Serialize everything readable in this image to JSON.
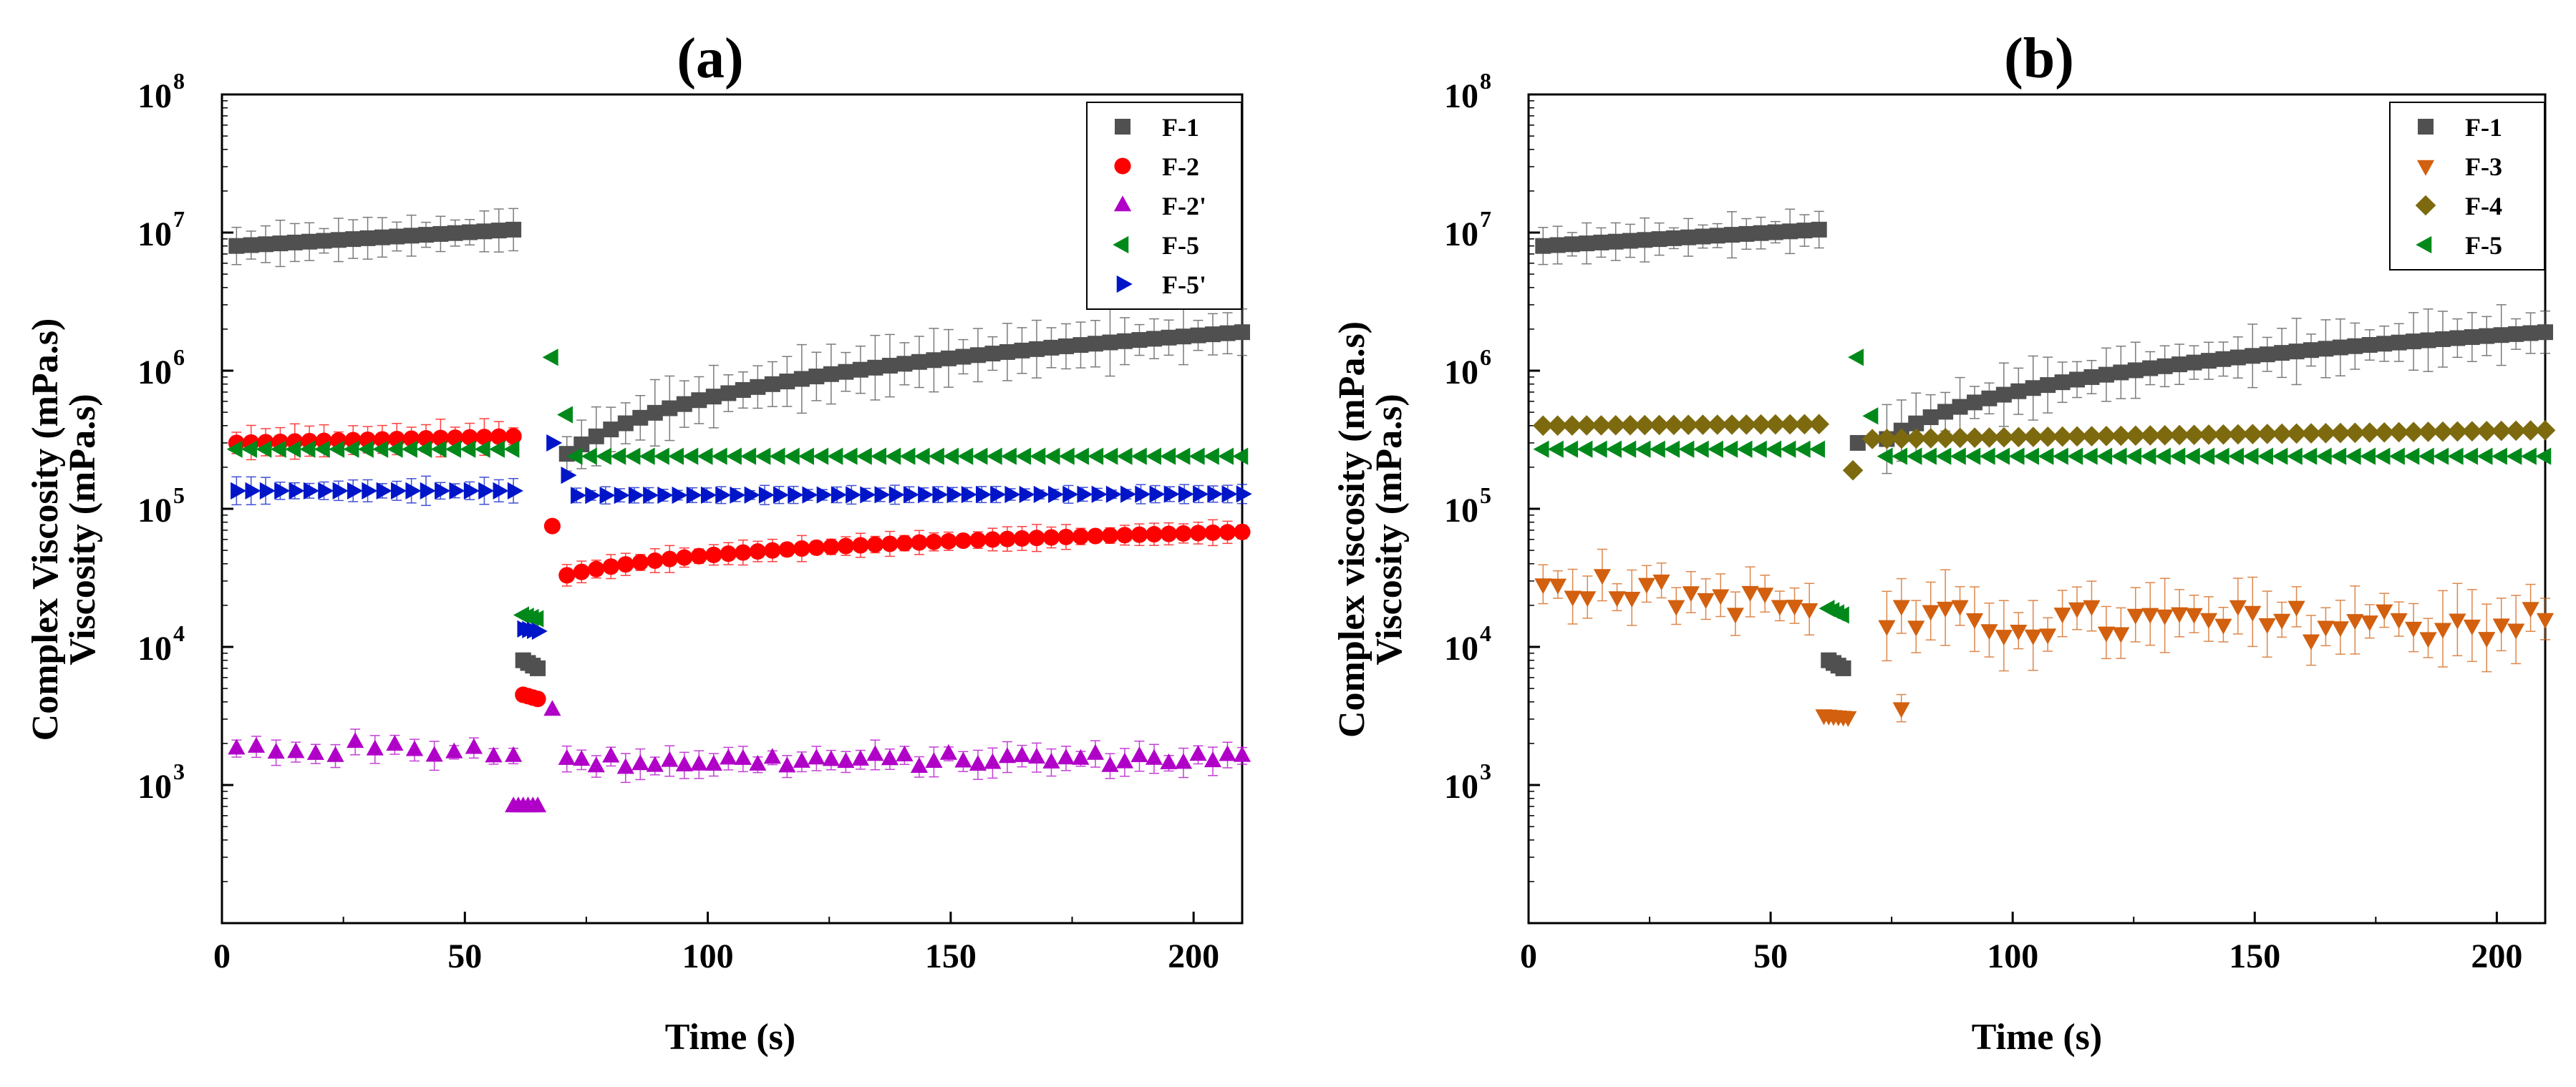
{
  "chart_data": [
    {
      "type": "scatter",
      "panel_label": "(a)",
      "xlabel": "Time (s)",
      "ylabel_outer": "Complex Viscosity (mPa.s)",
      "ylabel_inner": "Viscosity (mPa.s)",
      "xlim": [
        0,
        210
      ],
      "ylim_log10": [
        2,
        8
      ],
      "x_ticks": [
        0,
        50,
        100,
        150,
        200
      ],
      "y_tick_base": "10",
      "y_ticks": [
        {
          "exp": 3,
          "label": "3"
        },
        {
          "exp": 4,
          "label": "4"
        },
        {
          "exp": 5,
          "label": "5"
        },
        {
          "exp": 6,
          "label": "6"
        },
        {
          "exp": 7,
          "label": "7"
        },
        {
          "exp": 8,
          "label": "8"
        }
      ],
      "legend_position": "top-right",
      "series": [
        {
          "name": "F-1",
          "color": "#505050",
          "marker": "square",
          "segments": [
            {
              "x_start": 3,
              "x_end": 60,
              "step": 3,
              "y_start": 8000000,
              "y_end": 10500000,
              "err": 0.12
            },
            {
              "x_start": 62,
              "x_end": 65,
              "step": 1,
              "y_start": 8000,
              "y_end": 7000,
              "err": 0
            },
            {
              "x_start": 71,
              "x_end": 210,
              "step": 3,
              "y_start": 250000,
              "y_end": 1900000,
              "shape": "log",
              "err": 0.18
            }
          ]
        },
        {
          "name": "F-2",
          "color": "#ff0000",
          "marker": "circle",
          "segments": [
            {
              "x_start": 3,
              "x_end": 60,
              "step": 3,
              "y_start": 300000,
              "y_end": 335000,
              "err": 0.1
            },
            {
              "x_start": 62,
              "x_end": 65,
              "step": 1,
              "y_start": 4500,
              "y_end": 4200,
              "err": 0
            },
            {
              "x_start": 68,
              "x_end": 68,
              "step": 1,
              "y_start": 75000,
              "y_end": 75000,
              "err": 0
            },
            {
              "x_start": 71,
              "x_end": 210,
              "step": 3,
              "y_start": 33000,
              "y_end": 68000,
              "shape": "log",
              "err": 0.07
            }
          ]
        },
        {
          "name": "F-2'",
          "color": "#b000c8",
          "marker": "triangle-up",
          "segments": [
            {
              "x_start": 3,
              "x_end": 60,
              "step": 4,
              "y_start": 1800,
              "y_end": 1800,
              "jitter": 0.06,
              "err": 0.08
            },
            {
              "x_start": 60,
              "x_end": 65,
              "step": 1,
              "y_start": 700,
              "y_end": 700,
              "err": 0
            },
            {
              "x_start": 68,
              "x_end": 68,
              "step": 1,
              "y_start": 3500,
              "y_end": 3500,
              "err": 0
            },
            {
              "x_start": 71,
              "x_end": 210,
              "step": 3,
              "y_start": 1450,
              "y_end": 1550,
              "jitter": 0.05,
              "err": 0.08
            }
          ]
        },
        {
          "name": "F-5",
          "color": "#00891a",
          "marker": "triangle-left",
          "segments": [
            {
              "x_start": 3,
              "x_end": 60,
              "step": 3,
              "y_start": 270000,
              "y_end": 270000,
              "err": 0
            },
            {
              "x_start": 62,
              "x_end": 65,
              "step": 1,
              "y_start": 17000,
              "y_end": 16000,
              "err": 0
            },
            {
              "x_start": 68,
              "x_end": 68,
              "step": 1,
              "y_start": 1250000,
              "y_end": 1250000,
              "err": 0
            },
            {
              "x_start": 71,
              "x_end": 71,
              "step": 1,
              "y_start": 480000,
              "y_end": 480000,
              "err": 0
            },
            {
              "x_start": 73,
              "x_end": 210,
              "step": 3,
              "y_start": 240000,
              "y_end": 240000,
              "err": 0
            }
          ]
        },
        {
          "name": "F-5'",
          "color": "#0015c8",
          "marker": "triangle-right",
          "segments": [
            {
              "x_start": 3,
              "x_end": 60,
              "step": 3,
              "y_start": 135000,
              "y_end": 135000,
              "err": 0.08
            },
            {
              "x_start": 62,
              "x_end": 65,
              "step": 1,
              "y_start": 13500,
              "y_end": 13000,
              "err": 0
            },
            {
              "x_start": 68,
              "x_end": 68,
              "step": 1,
              "y_start": 300000,
              "y_end": 300000,
              "err": 0
            },
            {
              "x_start": 71,
              "x_end": 71,
              "step": 1,
              "y_start": 175000,
              "y_end": 175000,
              "err": 0
            },
            {
              "x_start": 73,
              "x_end": 210,
              "step": 3,
              "y_start": 125000,
              "y_end": 128000,
              "err": 0.05
            }
          ]
        }
      ]
    },
    {
      "type": "scatter",
      "panel_label": "(b)",
      "xlabel": "Time (s)",
      "ylabel_outer": "Complex viscosity (mPa.s)",
      "ylabel_inner": "Viscosity (mPa.s)",
      "xlim": [
        0,
        210
      ],
      "ylim_log10": [
        2,
        8
      ],
      "x_ticks": [
        0,
        50,
        100,
        150,
        200
      ],
      "y_tick_base": "10",
      "y_ticks": [
        {
          "exp": 3,
          "label": "3"
        },
        {
          "exp": 4,
          "label": "4"
        },
        {
          "exp": 5,
          "label": "5"
        },
        {
          "exp": 6,
          "label": "6"
        },
        {
          "exp": 7,
          "label": "7"
        },
        {
          "exp": 8,
          "label": "8"
        }
      ],
      "legend_position": "top-right",
      "series": [
        {
          "name": "F-1",
          "color": "#505050",
          "marker": "square",
          "segments": [
            {
              "x_start": 3,
              "x_end": 60,
              "step": 3,
              "y_start": 8000000,
              "y_end": 10500000,
              "err": 0.12
            },
            {
              "x_start": 62,
              "x_end": 65,
              "step": 1,
              "y_start": 8000,
              "y_end": 7000,
              "err": 0
            },
            {
              "x_start": 68,
              "x_end": 68,
              "step": 1,
              "y_start": 300000,
              "y_end": 300000,
              "err": 0
            },
            {
              "x_start": 74,
              "x_end": 210,
              "step": 3,
              "y_start": 320000,
              "y_end": 1900000,
              "shape": "log",
              "err": 0.18
            }
          ]
        },
        {
          "name": "F-3",
          "color": "#d2600f",
          "marker": "triangle-down",
          "segments": [
            {
              "x_start": 3,
              "x_end": 58,
              "step": 3,
              "y_start": 30000,
              "y_end": 19000,
              "jitter": 0.1,
              "err": 0.15
            },
            {
              "x_start": 61,
              "x_end": 66,
              "step": 1,
              "y_start": 3200,
              "y_end": 3100,
              "err": 0
            },
            {
              "x_start": 77,
              "x_end": 77,
              "step": 1,
              "y_start": 3600,
              "y_end": 3600,
              "err": 0.1
            },
            {
              "x_start": 74,
              "x_end": 210,
              "step": 3,
              "y_start": 15000,
              "y_end": 15000,
              "jitter": 0.13,
              "err": 0.2
            }
          ]
        },
        {
          "name": "F-4",
          "color": "#7d6a0f",
          "marker": "diamond",
          "segments": [
            {
              "x_start": 3,
              "x_end": 60,
              "step": 3,
              "y_start": 400000,
              "y_end": 410000,
              "err": 0
            },
            {
              "x_start": 67,
              "x_end": 67,
              "step": 1,
              "y_start": 190000,
              "y_end": 190000,
              "err": 0
            },
            {
              "x_start": 71,
              "x_end": 210,
              "step": 3,
              "y_start": 320000,
              "y_end": 370000,
              "err": 0
            }
          ]
        },
        {
          "name": "F-5",
          "color": "#00891a",
          "marker": "triangle-left",
          "segments": [
            {
              "x_start": 3,
              "x_end": 60,
              "step": 3,
              "y_start": 270000,
              "y_end": 270000,
              "err": 0
            },
            {
              "x_start": 62,
              "x_end": 65,
              "step": 1,
              "y_start": 19000,
              "y_end": 17000,
              "err": 0
            },
            {
              "x_start": 68,
              "x_end": 68,
              "step": 1,
              "y_start": 1250000,
              "y_end": 1250000,
              "err": 0
            },
            {
              "x_start": 71,
              "x_end": 71,
              "step": 1,
              "y_start": 470000,
              "y_end": 470000,
              "err": 0
            },
            {
              "x_start": 74,
              "x_end": 210,
              "step": 3,
              "y_start": 240000,
              "y_end": 240000,
              "err": 0
            }
          ]
        }
      ]
    }
  ]
}
